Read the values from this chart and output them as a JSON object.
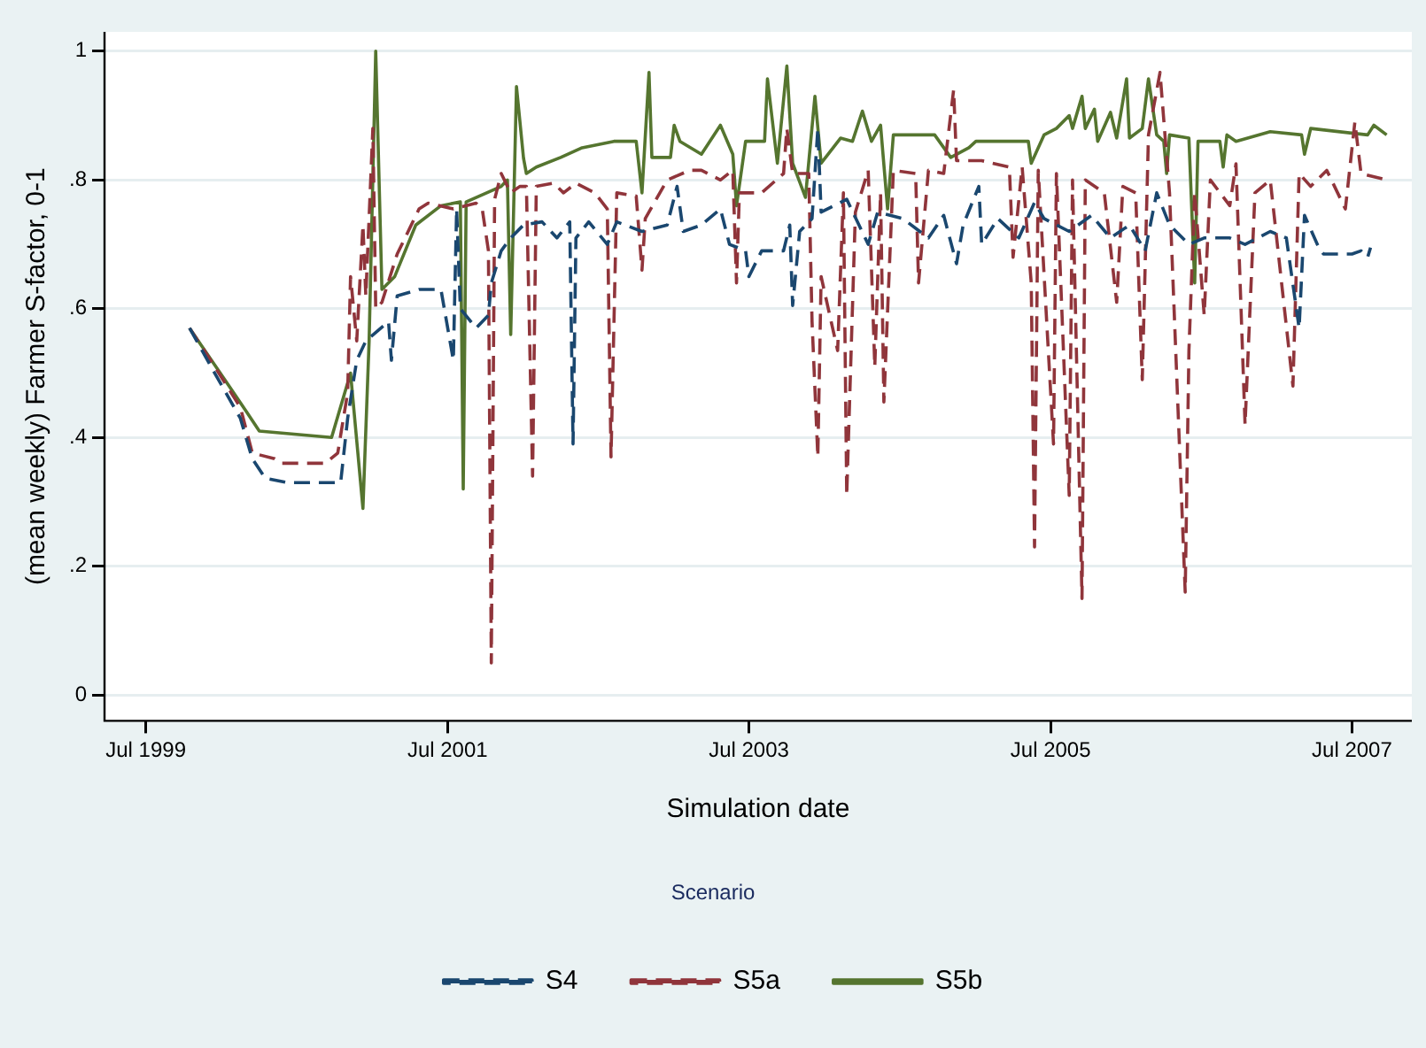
{
  "chart_data": {
    "type": "line",
    "xlabel": "Simulation date",
    "ylabel": "(mean weekly) Farmer S-factor, 0-1",
    "legend_title": "Scenario",
    "legend": "bottom",
    "grid": "y",
    "marker": "none",
    "xlim": [
      "1999-03-23",
      "2007-11-23"
    ],
    "xticks": [
      {
        "value": "1999-07-01",
        "label": "Jul 1999"
      },
      {
        "value": "2001-07-01",
        "label": "Jul 2001"
      },
      {
        "value": "2003-07-01",
        "label": "Jul 2003"
      },
      {
        "value": "2005-07-01",
        "label": "Jul 2005"
      },
      {
        "value": "2007-07-01",
        "label": "Jul 2007"
      }
    ],
    "ylim": [
      -0.04,
      1.03
    ],
    "yticks": [
      0,
      {
        "value": 0.2,
        "label": ".2"
      },
      {
        "value": 0.4,
        "label": ".4"
      },
      {
        "value": 0.6,
        "label": ".6"
      },
      {
        "value": 0.8,
        "label": ".8"
      },
      1
    ],
    "series": [
      {
        "name": "S4",
        "color": "#1a476f",
        "line_style": "dashed",
        "x": [
          "1999-10-15",
          "1999-12-15",
          "2000-02-15",
          "2000-03-15",
          "2000-04-15",
          "2000-06-08",
          "2000-10-15",
          "2000-11-01",
          "2000-11-23",
          "2000-12-15",
          "2001-02-08",
          "2001-02-15",
          "2001-03-01",
          "2001-04-23",
          "2001-06-15",
          "2001-07-15",
          "2001-07-23",
          "2001-08-01",
          "2001-09-08",
          "2001-10-08",
          "2001-10-15",
          "2001-11-08",
          "2001-12-01",
          "2002-01-01",
          "2002-02-15",
          "2002-03-23",
          "2002-04-23",
          "2002-05-01",
          "2002-05-08",
          "2002-06-08",
          "2002-07-23",
          "2002-08-15",
          "2002-10-15",
          "2002-12-15",
          "2003-01-08",
          "2003-01-23",
          "2003-03-08",
          "2003-04-23",
          "2003-05-15",
          "2003-06-23",
          "2003-07-01",
          "2003-08-01",
          "2003-09-23",
          "2003-10-08",
          "2003-10-15",
          "2003-11-01",
          "2003-12-01",
          "2003-12-15",
          "2003-12-23",
          "2004-02-23",
          "2004-04-15",
          "2004-05-08",
          "2004-07-08",
          "2004-09-08",
          "2004-10-15",
          "2004-11-15",
          "2004-12-01",
          "2005-01-08",
          "2005-01-15",
          "2005-02-23",
          "2005-04-15",
          "2005-05-23",
          "2005-06-15",
          "2005-08-15",
          "2005-10-08",
          "2005-11-23",
          "2006-01-08",
          "2006-02-15",
          "2006-03-15",
          "2006-04-15",
          "2006-06-01",
          "2006-07-08",
          "2006-09-08",
          "2006-10-15",
          "2006-12-15",
          "2007-01-23",
          "2007-02-23",
          "2007-03-08",
          "2007-04-08",
          "2007-04-23",
          "2007-07-01",
          "2007-07-23",
          "2007-08-08",
          "2007-08-15"
        ],
        "values": [
          0.57,
          0.5,
          0.43,
          0.367,
          0.337,
          0.33,
          0.33,
          0.43,
          0.52,
          0.55,
          0.58,
          0.52,
          0.62,
          0.63,
          0.63,
          0.52,
          0.755,
          0.6,
          0.57,
          0.59,
          0.64,
          0.69,
          0.71,
          0.73,
          0.735,
          0.71,
          0.735,
          0.39,
          0.71,
          0.735,
          0.7,
          0.735,
          0.72,
          0.73,
          0.79,
          0.72,
          0.73,
          0.755,
          0.7,
          0.69,
          0.65,
          0.69,
          0.69,
          0.73,
          0.605,
          0.72,
          0.74,
          0.88,
          0.75,
          0.77,
          0.7,
          0.75,
          0.74,
          0.71,
          0.745,
          0.67,
          0.73,
          0.79,
          0.7,
          0.74,
          0.71,
          0.765,
          0.74,
          0.72,
          0.745,
          0.71,
          0.73,
          0.69,
          0.78,
          0.73,
          0.7,
          0.71,
          0.71,
          0.7,
          0.72,
          0.71,
          0.57,
          0.745,
          0.7,
          0.685,
          0.685,
          0.69,
          0.68,
          0.695
        ]
      },
      {
        "name": "S5a",
        "color": "#90353b",
        "line_style": "dashed",
        "x": [
          "1999-10-15",
          "1999-12-15",
          "2000-02-15",
          "2000-03-15",
          "2000-05-08",
          "2000-05-23",
          "2000-09-08",
          "2000-10-08",
          "2000-11-01",
          "2000-11-08",
          "2000-11-23",
          "2000-12-08",
          "2000-12-15",
          "2001-01-01",
          "2001-01-08",
          "2001-01-23",
          "2001-03-01",
          "2001-04-23",
          "2001-05-15",
          "2001-07-15",
          "2001-09-08",
          "2001-09-23",
          "2001-10-08",
          "2001-10-15",
          "2001-10-23",
          "2001-11-08",
          "2001-12-01",
          "2001-12-23",
          "2002-01-08",
          "2002-01-15",
          "2002-01-23",
          "2002-02-01",
          "2002-03-15",
          "2002-04-08",
          "2002-05-08",
          "2002-06-23",
          "2002-07-23",
          "2002-08-01",
          "2002-08-15",
          "2002-10-01",
          "2002-10-15",
          "2002-10-23",
          "2002-12-15",
          "2003-02-08",
          "2003-03-08",
          "2003-04-23",
          "2003-05-23",
          "2003-06-01",
          "2003-06-08",
          "2003-08-01",
          "2003-09-23",
          "2003-10-01",
          "2003-10-15",
          "2003-11-23",
          "2003-12-01",
          "2003-12-15",
          "2003-12-23",
          "2004-02-01",
          "2004-02-15",
          "2004-02-23",
          "2004-03-15",
          "2004-04-15",
          "2004-05-01",
          "2004-05-15",
          "2004-05-23",
          "2004-06-15",
          "2004-08-08",
          "2004-08-15",
          "2004-09-08",
          "2004-10-15",
          "2004-11-08",
          "2004-11-15",
          "2005-01-15",
          "2005-03-23",
          "2005-04-01",
          "2005-04-23",
          "2005-05-15",
          "2005-05-23",
          "2005-06-01",
          "2005-07-08",
          "2005-07-15",
          "2005-08-15",
          "2005-08-23",
          "2005-09-15",
          "2005-09-23",
          "2005-11-08",
          "2005-12-08",
          "2005-12-23",
          "2006-01-23",
          "2006-02-08",
          "2006-02-23",
          "2006-03-23",
          "2006-04-15",
          "2006-05-23",
          "2006-06-01",
          "2006-06-15",
          "2006-07-08",
          "2006-07-23",
          "2006-09-08",
          "2006-09-23",
          "2006-10-15",
          "2006-11-08",
          "2006-12-15",
          "2007-02-08",
          "2007-02-23",
          "2007-03-23",
          "2007-05-01",
          "2007-06-15",
          "2007-07-08",
          "2007-07-23",
          "2007-09-23"
        ],
        "values": [
          0.57,
          0.51,
          0.447,
          0.376,
          0.367,
          0.36,
          0.36,
          0.376,
          0.47,
          0.65,
          0.55,
          0.73,
          0.62,
          0.88,
          0.6,
          0.61,
          0.685,
          0.755,
          0.764,
          0.755,
          0.764,
          0.755,
          0.69,
          0.05,
          0.77,
          0.81,
          0.78,
          0.79,
          0.79,
          0.58,
          0.34,
          0.79,
          0.795,
          0.78,
          0.795,
          0.78,
          0.755,
          0.37,
          0.78,
          0.775,
          0.66,
          0.74,
          0.8,
          0.815,
          0.815,
          0.8,
          0.815,
          0.64,
          0.78,
          0.78,
          0.81,
          0.88,
          0.81,
          0.81,
          0.58,
          0.37,
          0.65,
          0.535,
          0.78,
          0.31,
          0.75,
          0.815,
          0.51,
          0.78,
          0.455,
          0.815,
          0.81,
          0.64,
          0.815,
          0.81,
          0.94,
          0.83,
          0.83,
          0.82,
          0.68,
          0.82,
          0.64,
          0.23,
          0.815,
          0.39,
          0.81,
          0.31,
          0.8,
          0.15,
          0.8,
          0.78,
          0.61,
          0.79,
          0.78,
          0.49,
          0.87,
          0.967,
          0.78,
          0.16,
          0.535,
          0.78,
          0.59,
          0.8,
          0.76,
          0.825,
          0.42,
          0.78,
          0.8,
          0.48,
          0.81,
          0.79,
          0.815,
          0.755,
          0.89,
          0.81,
          0.8
        ]
      },
      {
        "name": "S5b",
        "color": "#55752f",
        "line_style": "solid",
        "x": [
          "1999-10-15",
          "2000-01-08",
          "2000-03-01",
          "2000-04-01",
          "2000-09-23",
          "2000-11-08",
          "2000-12-08",
          "2000-12-23",
          "2001-01-08",
          "2001-01-23",
          "2001-02-23",
          "2001-04-15",
          "2001-06-15",
          "2001-08-01",
          "2001-08-08",
          "2001-08-15",
          "2001-11-08",
          "2001-11-23",
          "2001-12-01",
          "2001-12-15",
          "2002-01-01",
          "2002-01-08",
          "2002-02-01",
          "2002-04-01",
          "2002-05-23",
          "2002-08-08",
          "2002-10-01",
          "2002-10-15",
          "2002-11-01",
          "2002-11-08",
          "2002-12-23",
          "2003-01-01",
          "2003-01-15",
          "2003-03-08",
          "2003-04-23",
          "2003-05-23",
          "2003-06-01",
          "2003-06-23",
          "2003-08-08",
          "2003-08-15",
          "2003-09-08",
          "2003-10-01",
          "2003-10-15",
          "2003-11-15",
          "2003-12-08",
          "2003-12-23",
          "2004-02-08",
          "2004-03-08",
          "2004-04-01",
          "2004-04-23",
          "2004-05-15",
          "2004-06-01",
          "2004-06-15",
          "2004-09-23",
          "2004-11-01",
          "2004-12-15",
          "2005-01-01",
          "2005-05-08",
          "2005-05-15",
          "2005-06-15",
          "2005-07-15",
          "2005-08-15",
          "2005-08-23",
          "2005-09-15",
          "2005-09-23",
          "2005-10-15",
          "2005-10-23",
          "2005-11-23",
          "2005-12-08",
          "2006-01-01",
          "2006-01-08",
          "2006-02-08",
          "2006-02-23",
          "2006-03-15",
          "2006-04-01",
          "2006-04-08",
          "2006-04-15",
          "2006-06-01",
          "2006-06-15",
          "2006-06-23",
          "2006-08-15",
          "2006-08-23",
          "2006-09-01",
          "2006-09-23",
          "2006-12-15",
          "2007-03-01",
          "2007-03-08",
          "2007-03-23",
          "2007-08-08",
          "2007-08-23",
          "2007-09-23"
        ],
        "values": [
          0.57,
          0.49,
          0.44,
          0.41,
          0.4,
          0.5,
          0.29,
          0.55,
          1.0,
          0.63,
          0.65,
          0.73,
          0.76,
          0.766,
          0.32,
          0.766,
          0.79,
          0.8,
          0.56,
          0.945,
          0.834,
          0.81,
          0.82,
          0.835,
          0.85,
          0.86,
          0.86,
          0.78,
          0.967,
          0.835,
          0.835,
          0.885,
          0.86,
          0.84,
          0.885,
          0.84,
          0.76,
          0.86,
          0.86,
          0.957,
          0.826,
          0.977,
          0.826,
          0.773,
          0.93,
          0.826,
          0.865,
          0.86,
          0.907,
          0.86,
          0.885,
          0.755,
          0.87,
          0.87,
          0.835,
          0.85,
          0.86,
          0.86,
          0.826,
          0.87,
          0.88,
          0.9,
          0.88,
          0.93,
          0.88,
          0.91,
          0.86,
          0.905,
          0.865,
          0.957,
          0.865,
          0.88,
          0.957,
          0.87,
          0.86,
          0.81,
          0.87,
          0.865,
          0.64,
          0.86,
          0.86,
          0.82,
          0.87,
          0.86,
          0.875,
          0.87,
          0.84,
          0.88,
          0.87,
          0.885,
          0.87
        ]
      }
    ]
  }
}
